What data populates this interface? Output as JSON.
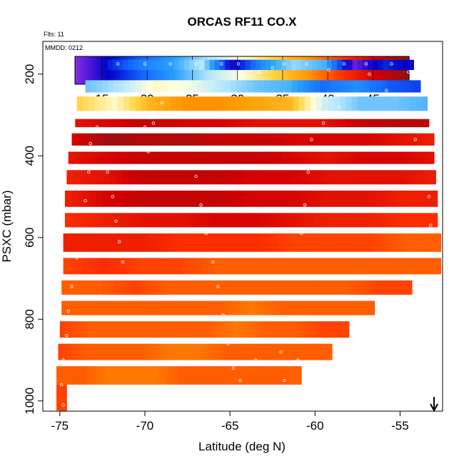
{
  "chart_data": {
    "type": "heatmap",
    "title": "ORCAS RF11 CO.X",
    "note_top_left": "Flts: 11",
    "note_panel": "MMDD: 0212",
    "xlabel": "Latitude (deg N)",
    "ylabel": "PSXC (mbar)",
    "xlim": [
      -76,
      -52.5
    ],
    "ylim": [
      1025,
      120
    ],
    "x_ticks": [
      -75,
      -70,
      -65,
      -60,
      -55
    ],
    "x_tick_labels": [
      "-75",
      "-70",
      "-65",
      "-60",
      "-55"
    ],
    "y_ticks": [
      200,
      400,
      600,
      800,
      1000
    ],
    "y_tick_labels": [
      "200",
      "400",
      "600",
      "800",
      "1000"
    ],
    "colorbar": {
      "range": [
        12,
        49
      ],
      "ticks": [
        15,
        20,
        25,
        30,
        35,
        40,
        45
      ],
      "tick_labels": [
        "15",
        "20",
        "25",
        "30",
        "35",
        "40",
        "45"
      ],
      "palette": [
        "#8a2be2",
        "#0000c8",
        "#1464ff",
        "#28a0ff",
        "#b4e6ff",
        "#ffffdc",
        "#ffd23c",
        "#ff9600",
        "#ff3200",
        "#d20000",
        "#8c1414"
      ]
    },
    "layers": [
      {
        "p": [
          165,
          190
        ],
        "lat": [
          -72.2,
          -54.2
        ],
        "co": [
          17,
          21,
          23,
          27,
          15,
          22,
          26,
          24,
          13,
          17,
          15
        ]
      },
      {
        "p": [
          215,
          245
        ],
        "lat": [
          -73.5,
          -53.8
        ],
        "co": [
          25,
          27,
          31,
          30,
          27,
          25,
          24,
          20,
          22,
          19,
          18
        ]
      },
      {
        "p": [
          255,
          290
        ],
        "lat": [
          -74.0,
          -53.4
        ],
        "co": [
          34,
          31,
          36,
          38,
          38,
          37,
          36,
          28,
          25,
          25,
          24
        ]
      },
      {
        "p": [
          310,
          330
        ],
        "lat": [
          -74.1,
          -53.3
        ],
        "co": [
          44,
          45,
          46,
          45,
          45,
          44,
          44,
          44,
          46,
          47,
          46
        ]
      },
      {
        "p": [
          345,
          375
        ],
        "lat": [
          -74.3,
          -53.0
        ],
        "co": [
          45,
          48,
          47,
          47,
          46,
          46,
          45,
          45,
          45,
          44,
          43
        ]
      },
      {
        "p": [
          390,
          420
        ],
        "lat": [
          -74.5,
          -53.0
        ],
        "co": [
          44,
          45,
          46,
          46,
          46,
          46,
          45,
          44,
          45,
          45,
          44
        ]
      },
      {
        "p": [
          435,
          470
        ],
        "lat": [
          -74.6,
          -52.9
        ],
        "co": [
          43,
          44,
          46,
          46,
          46,
          45,
          45,
          44,
          44,
          44,
          43
        ]
      },
      {
        "p": [
          485,
          525
        ],
        "lat": [
          -74.7,
          -52.8
        ],
        "co": [
          43,
          45,
          46,
          46,
          46,
          45,
          45,
          44,
          44,
          43,
          43
        ]
      },
      {
        "p": [
          540,
          575
        ],
        "lat": [
          -74.7,
          -52.8
        ],
        "co": [
          42,
          43,
          44,
          44,
          45,
          45,
          44,
          43,
          43,
          42,
          42
        ]
      },
      {
        "p": [
          590,
          635
        ],
        "lat": [
          -74.8,
          -52.6
        ],
        "co": [
          43,
          43,
          43,
          42,
          42,
          42,
          41,
          41,
          41,
          40,
          40
        ]
      },
      {
        "p": [
          650,
          690
        ],
        "lat": [
          -74.8,
          -52.6
        ],
        "co": [
          41,
          42,
          41,
          41,
          40,
          40,
          40,
          40,
          40,
          40,
          40
        ]
      },
      {
        "p": [
          705,
          740
        ],
        "lat": [
          -74.9,
          -54.3
        ],
        "co": [
          40,
          40,
          41,
          40,
          40,
          40,
          40,
          40,
          40,
          41,
          41
        ]
      },
      {
        "p": [
          755,
          790
        ],
        "lat": [
          -74.9,
          -56.5
        ],
        "co": [
          40,
          40,
          40,
          40,
          40,
          40,
          39,
          40,
          40,
          40,
          40
        ]
      },
      {
        "p": [
          805,
          845
        ],
        "lat": [
          -75.0,
          -58.0
        ],
        "co": [
          41,
          40,
          40,
          40,
          40,
          40,
          39,
          40,
          40,
          41,
          41
        ]
      },
      {
        "p": [
          860,
          900
        ],
        "lat": [
          -75.1,
          -59.0
        ],
        "co": [
          41,
          40,
          40,
          40,
          39,
          39,
          40,
          40,
          40,
          40,
          40
        ]
      },
      {
        "p": [
          915,
          960
        ],
        "lat": [
          -75.2,
          -60.8
        ],
        "co": [
          40,
          40,
          39,
          39,
          39,
          40,
          40,
          40,
          40,
          40,
          40
        ]
      },
      {
        "p": [
          960,
          1025
        ],
        "lat": [
          -75.2,
          -74.6
        ],
        "co": [
          41,
          41
        ]
      }
    ],
    "flight_track": [
      [
        -74.8,
        1010
      ],
      [
        -74.9,
        960
      ],
      [
        -74.8,
        900
      ],
      [
        -74.6,
        840
      ],
      [
        -74.5,
        780
      ],
      [
        -74.3,
        720
      ],
      [
        -74.0,
        650
      ],
      [
        -73.7,
        580
      ],
      [
        -73.5,
        510
      ],
      [
        -73.3,
        440
      ],
      [
        -73.2,
        370
      ],
      [
        -72.8,
        330
      ],
      [
        -72.5,
        380
      ],
      [
        -72.2,
        440
      ],
      [
        -71.9,
        500
      ],
      [
        -71.7,
        560
      ],
      [
        -71.5,
        610
      ],
      [
        -71.3,
        660
      ],
      [
        -71.6,
        175
      ],
      [
        -70.0,
        175
      ],
      [
        -68.5,
        175
      ],
      [
        -67.0,
        175
      ],
      [
        -65.5,
        175
      ],
      [
        -64.5,
        175
      ],
      [
        -70.0,
        330
      ],
      [
        -69.8,
        390
      ],
      [
        -69.5,
        320
      ],
      [
        -69.0,
        270
      ],
      [
        -67.0,
        450
      ],
      [
        -66.7,
        520
      ],
      [
        -66.4,
        590
      ],
      [
        -66.0,
        660
      ],
      [
        -65.7,
        720
      ],
      [
        -65.4,
        790
      ],
      [
        -65.1,
        860
      ],
      [
        -64.8,
        920
      ],
      [
        -64.4,
        950
      ],
      [
        -63.5,
        900
      ],
      [
        -62.5,
        850
      ],
      [
        -62.0,
        880
      ],
      [
        -61.8,
        950
      ],
      [
        -61.0,
        900
      ],
      [
        -60.5,
        850
      ],
      [
        -63.3,
        195
      ],
      [
        -62.5,
        185
      ],
      [
        -61.8,
        175
      ],
      [
        -60.5,
        175
      ],
      [
        -59.2,
        190
      ],
      [
        -58.3,
        175
      ],
      [
        -57.0,
        175
      ],
      [
        -55.5,
        175
      ],
      [
        -54.5,
        195
      ],
      [
        -60.0,
        280
      ],
      [
        -60.2,
        360
      ],
      [
        -60.4,
        440
      ],
      [
        -60.6,
        520
      ],
      [
        -60.8,
        590
      ],
      [
        -59.5,
        320
      ],
      [
        -58.6,
        280
      ],
      [
        -56.8,
        200
      ],
      [
        -55.8,
        240
      ],
      [
        -54.8,
        300
      ],
      [
        -54.1,
        360
      ],
      [
        -53.6,
        430
      ],
      [
        -53.3,
        500
      ],
      [
        -53.2,
        570
      ],
      [
        -53.0,
        640
      ],
      [
        -52.9,
        730
      ]
    ],
    "arrow_marker_lat": -53.0
  }
}
